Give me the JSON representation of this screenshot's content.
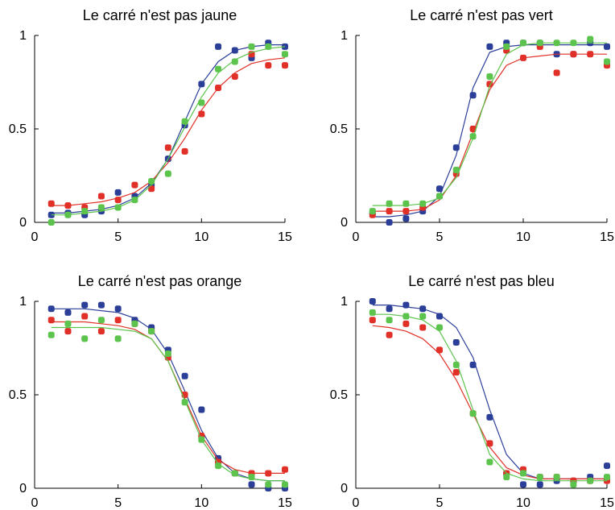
{
  "chart_data": [
    {
      "type": "scatter",
      "title": "Le carré n'est pas jaune",
      "xlim": [
        0,
        15
      ],
      "ylim": [
        0,
        1
      ],
      "xticks": [
        "0",
        "5",
        "10",
        "15"
      ],
      "yticks": [
        "0",
        "0.5",
        "1"
      ],
      "grid": false,
      "series": [
        {
          "color": "#2b3f98",
          "x": [
            1,
            2,
            3,
            4,
            5,
            6,
            7,
            8,
            9,
            10,
            11,
            12,
            13,
            14,
            15
          ],
          "y": [
            0.04,
            0.05,
            0.04,
            0.06,
            0.16,
            0.14,
            0.2,
            0.34,
            0.52,
            0.74,
            0.94,
            0.92,
            0.88,
            0.96,
            0.94
          ],
          "fit": [
            0.05,
            0.05,
            0.06,
            0.07,
            0.09,
            0.13,
            0.21,
            0.34,
            0.54,
            0.74,
            0.86,
            0.92,
            0.94,
            0.95,
            0.95
          ]
        },
        {
          "color": "#e03028",
          "x": [
            1,
            2,
            3,
            4,
            5,
            6,
            7,
            8,
            9,
            10,
            11,
            12,
            13,
            14,
            15
          ],
          "y": [
            0.1,
            0.09,
            0.08,
            0.14,
            0.12,
            0.2,
            0.18,
            0.4,
            0.38,
            0.58,
            0.72,
            0.78,
            0.9,
            0.84,
            0.84
          ],
          "fit": [
            0.09,
            0.09,
            0.1,
            0.11,
            0.13,
            0.16,
            0.22,
            0.32,
            0.45,
            0.6,
            0.72,
            0.8,
            0.85,
            0.87,
            0.88
          ]
        },
        {
          "color": "#5cc44c",
          "x": [
            1,
            2,
            3,
            4,
            5,
            6,
            7,
            8,
            9,
            10,
            11,
            12,
            13,
            14,
            15
          ],
          "y": [
            0.0,
            0.04,
            0.06,
            0.08,
            0.08,
            0.12,
            0.22,
            0.26,
            0.54,
            0.64,
            0.82,
            0.86,
            0.94,
            0.94,
            0.9
          ],
          "fit": [
            0.04,
            0.04,
            0.05,
            0.06,
            0.08,
            0.12,
            0.2,
            0.34,
            0.51,
            0.67,
            0.8,
            0.87,
            0.91,
            0.93,
            0.94
          ]
        }
      ]
    },
    {
      "type": "scatter",
      "title": "Le carré n'est pas vert",
      "xlim": [
        0,
        15
      ],
      "ylim": [
        0,
        1
      ],
      "xticks": [
        "0",
        "5",
        "10",
        "15"
      ],
      "yticks": [
        "0",
        "0.5",
        "1"
      ],
      "grid": false,
      "series": [
        {
          "color": "#2b3f98",
          "x": [
            1,
            2,
            3,
            4,
            5,
            6,
            7,
            8,
            9,
            10,
            11,
            12,
            13,
            14,
            15
          ],
          "y": [
            0.05,
            0.0,
            0.02,
            0.06,
            0.18,
            0.4,
            0.68,
            0.94,
            0.96,
            0.96,
            0.96,
            0.9,
            0.9,
            0.96,
            0.94
          ],
          "fit": [
            0.03,
            0.03,
            0.04,
            0.06,
            0.14,
            0.36,
            0.72,
            0.91,
            0.94,
            0.95,
            0.95,
            0.95,
            0.95,
            0.95,
            0.95
          ]
        },
        {
          "color": "#e03028",
          "x": [
            1,
            2,
            3,
            4,
            5,
            6,
            7,
            8,
            9,
            10,
            11,
            12,
            13,
            14,
            15
          ],
          "y": [
            0.04,
            0.06,
            0.06,
            0.08,
            0.14,
            0.26,
            0.5,
            0.74,
            0.92,
            0.88,
            0.94,
            0.8,
            0.9,
            0.9,
            0.84
          ],
          "fit": [
            0.06,
            0.06,
            0.06,
            0.07,
            0.12,
            0.25,
            0.48,
            0.71,
            0.84,
            0.88,
            0.89,
            0.9,
            0.9,
            0.9,
            0.9
          ]
        },
        {
          "color": "#5cc44c",
          "x": [
            1,
            2,
            3,
            4,
            5,
            6,
            7,
            8,
            9,
            10,
            11,
            12,
            13,
            14,
            15
          ],
          "y": [
            0.06,
            0.1,
            0.1,
            0.1,
            0.14,
            0.28,
            0.46,
            0.78,
            0.94,
            0.96,
            0.96,
            0.96,
            0.96,
            0.98,
            0.86
          ],
          "fit": [
            0.09,
            0.09,
            0.09,
            0.1,
            0.13,
            0.24,
            0.45,
            0.73,
            0.9,
            0.95,
            0.96,
            0.96,
            0.96,
            0.96,
            0.96
          ]
        }
      ]
    },
    {
      "type": "scatter",
      "title": "Le carré n'est pas orange",
      "xlim": [
        0,
        15
      ],
      "ylim": [
        0,
        1
      ],
      "xticks": [
        "0",
        "5",
        "10",
        "15"
      ],
      "yticks": [
        "0",
        "0.5",
        "1"
      ],
      "grid": false,
      "series": [
        {
          "color": "#2b3f98",
          "x": [
            1,
            2,
            3,
            4,
            5,
            6,
            7,
            8,
            9,
            10,
            11,
            12,
            13,
            14,
            15
          ],
          "y": [
            0.96,
            0.94,
            0.98,
            0.98,
            0.96,
            0.9,
            0.86,
            0.74,
            0.6,
            0.42,
            0.16,
            0.08,
            0.02,
            0.0,
            0.0
          ],
          "fit": [
            0.96,
            0.96,
            0.96,
            0.95,
            0.94,
            0.91,
            0.85,
            0.72,
            0.52,
            0.31,
            0.16,
            0.08,
            0.05,
            0.04,
            0.04
          ]
        },
        {
          "color": "#e03028",
          "x": [
            1,
            2,
            3,
            4,
            5,
            6,
            7,
            8,
            9,
            10,
            11,
            12,
            13,
            14,
            15
          ],
          "y": [
            0.9,
            0.84,
            0.92,
            0.84,
            0.9,
            0.88,
            0.84,
            0.7,
            0.5,
            0.28,
            0.14,
            0.08,
            0.08,
            0.08,
            0.1
          ],
          "fit": [
            0.89,
            0.89,
            0.89,
            0.88,
            0.87,
            0.85,
            0.8,
            0.68,
            0.48,
            0.28,
            0.15,
            0.1,
            0.08,
            0.08,
            0.08
          ]
        },
        {
          "color": "#5cc44c",
          "x": [
            1,
            2,
            3,
            4,
            5,
            6,
            7,
            8,
            9,
            10,
            11,
            12,
            13,
            14,
            15
          ],
          "y": [
            0.82,
            0.88,
            0.8,
            0.9,
            0.8,
            0.88,
            0.84,
            0.72,
            0.46,
            0.26,
            0.12,
            0.08,
            0.06,
            0.02,
            0.02
          ],
          "fit": [
            0.86,
            0.86,
            0.86,
            0.86,
            0.85,
            0.84,
            0.8,
            0.68,
            0.47,
            0.26,
            0.13,
            0.07,
            0.05,
            0.04,
            0.04
          ]
        }
      ]
    },
    {
      "type": "scatter",
      "title": "Le carré n'est pas bleu",
      "xlim": [
        0,
        15
      ],
      "ylim": [
        0,
        1
      ],
      "xticks": [
        "0",
        "5",
        "10",
        "15"
      ],
      "yticks": [
        "0",
        "0.5",
        "1"
      ],
      "grid": false,
      "series": [
        {
          "color": "#2b3f98",
          "x": [
            1,
            2,
            3,
            4,
            5,
            6,
            7,
            8,
            9,
            10,
            11,
            12,
            13,
            14,
            15
          ],
          "y": [
            1.0,
            0.96,
            0.98,
            0.96,
            0.92,
            0.78,
            0.66,
            0.38,
            0.08,
            0.02,
            0.02,
            0.04,
            0.04,
            0.06,
            0.12
          ],
          "fit": [
            0.98,
            0.98,
            0.97,
            0.96,
            0.93,
            0.86,
            0.7,
            0.42,
            0.18,
            0.08,
            0.05,
            0.05,
            0.05,
            0.05,
            0.05
          ]
        },
        {
          "color": "#e03028",
          "x": [
            1,
            2,
            3,
            4,
            5,
            6,
            7,
            8,
            9,
            10,
            11,
            12,
            13,
            14,
            15
          ],
          "y": [
            0.9,
            0.82,
            0.88,
            0.86,
            0.74,
            0.62,
            0.4,
            0.24,
            0.08,
            0.1,
            0.06,
            0.06,
            0.04,
            0.04,
            0.04
          ],
          "fit": [
            0.87,
            0.86,
            0.84,
            0.8,
            0.72,
            0.58,
            0.4,
            0.22,
            0.11,
            0.07,
            0.05,
            0.05,
            0.05,
            0.05,
            0.05
          ]
        },
        {
          "color": "#5cc44c",
          "x": [
            1,
            2,
            3,
            4,
            5,
            6,
            7,
            8,
            9,
            10,
            11,
            12,
            13,
            14,
            15
          ],
          "y": [
            0.94,
            0.9,
            0.92,
            0.92,
            0.86,
            0.66,
            0.4,
            0.14,
            0.06,
            0.08,
            0.06,
            0.06,
            0.02,
            0.04,
            0.06
          ],
          "fit": [
            0.93,
            0.93,
            0.92,
            0.9,
            0.84,
            0.68,
            0.42,
            0.18,
            0.08,
            0.05,
            0.04,
            0.04,
            0.04,
            0.04,
            0.04
          ]
        }
      ]
    }
  ]
}
